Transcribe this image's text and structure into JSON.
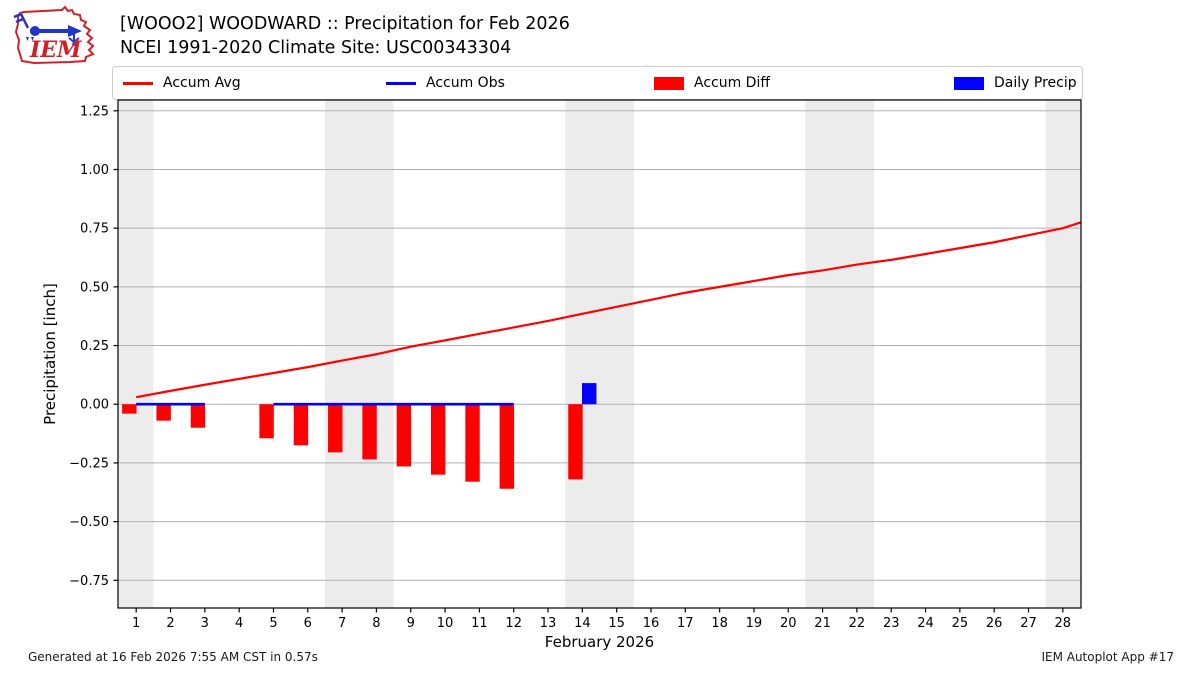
{
  "header": {
    "title_line1": "[WOOO2] WOODWARD :: Precipitation for Feb 2026",
    "title_line2": "NCEI 1991-2020 Climate Site: USC00343304",
    "logo_text": "IEM"
  },
  "legend": {
    "items": [
      {
        "label": "Accum Avg",
        "swatch": "line",
        "color": "#ff0000"
      },
      {
        "label": "Accum Obs",
        "swatch": "line",
        "color": "#0000ff"
      },
      {
        "label": "Accum Diff",
        "swatch": "patch",
        "color": "#ff0000"
      },
      {
        "label": "Daily Precip",
        "swatch": "patch",
        "color": "#0000ff"
      }
    ]
  },
  "footer": {
    "left": "Generated at 16 Feb 2026 7:55 AM CST in 0.57s",
    "right": "IEM Autoplot App #17"
  },
  "colors": {
    "accum_avg": "#ff0000",
    "accum_obs": "#0000ff",
    "accum_diff": "#ff0000",
    "daily_precip": "#0000ff",
    "grid": "#b0b0b0",
    "weekend_band": "#ececec",
    "axis": "#000000",
    "logo_red": "#d1202a",
    "logo_blue": "#2135c9"
  },
  "chart_data": {
    "type": "line+bar",
    "xlabel": "February 2026",
    "ylabel": "Precipitation [inch]",
    "xlim": [
      0.47,
      28.53
    ],
    "ylim": [
      -0.868,
      1.296
    ],
    "xticks": [
      1,
      2,
      3,
      4,
      5,
      6,
      7,
      8,
      9,
      10,
      11,
      12,
      13,
      14,
      15,
      16,
      17,
      18,
      19,
      20,
      21,
      22,
      23,
      24,
      25,
      26,
      27,
      28
    ],
    "yticks": [
      -0.75,
      -0.5,
      -0.25,
      0.0,
      0.25,
      0.5,
      0.75,
      1.0,
      1.25
    ],
    "grid": true,
    "weekend_bands": [
      [
        0.47,
        1.5
      ],
      [
        6.5,
        8.5
      ],
      [
        13.5,
        15.5
      ],
      [
        20.5,
        22.5
      ],
      [
        27.5,
        28.53
      ]
    ],
    "series": {
      "accum_avg": {
        "name": "Accum Avg",
        "type": "line",
        "x": [
          1,
          2,
          3,
          4,
          5,
          6,
          7,
          8,
          9,
          10,
          11,
          12,
          13,
          14,
          15,
          16,
          17,
          18,
          19,
          20,
          21,
          22,
          23,
          24,
          25,
          26,
          27,
          28,
          28.53
        ],
        "values": [
          0.03,
          0.057,
          0.083,
          0.108,
          0.133,
          0.158,
          0.186,
          0.213,
          0.245,
          0.272,
          0.3,
          0.327,
          0.355,
          0.385,
          0.415,
          0.445,
          0.475,
          0.5,
          0.525,
          0.55,
          0.57,
          0.595,
          0.615,
          0.64,
          0.665,
          0.69,
          0.72,
          0.75,
          0.775
        ]
      },
      "accum_obs": {
        "name": "Accum Obs",
        "type": "line",
        "segments": [
          {
            "x0": 1,
            "x1": 3,
            "value": 0.0
          },
          {
            "x0": 5,
            "x1": 12,
            "value": 0.0
          }
        ]
      },
      "accum_diff": {
        "name": "Accum Diff",
        "type": "bar",
        "x_offset": -0.2,
        "bar_width": 0.42,
        "points": [
          [
            1,
            -0.04
          ],
          [
            2,
            -0.07
          ],
          [
            3,
            -0.1
          ],
          [
            5,
            -0.145
          ],
          [
            6,
            -0.175
          ],
          [
            7,
            -0.205
          ],
          [
            8,
            -0.235
          ],
          [
            9,
            -0.265
          ],
          [
            10,
            -0.3
          ],
          [
            11,
            -0.33
          ],
          [
            12,
            -0.36
          ],
          [
            14,
            -0.32
          ]
        ]
      },
      "daily_precip": {
        "name": "Daily Precip",
        "type": "bar",
        "x_offset": 0.2,
        "bar_width": 0.42,
        "points": [
          [
            14,
            0.09
          ]
        ]
      }
    }
  }
}
